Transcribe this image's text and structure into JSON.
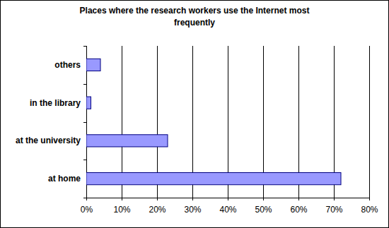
{
  "chart_data": {
    "type": "bar",
    "title": "Places where the research workers use the Internet most frequently",
    "orientation": "horizontal",
    "categories": [
      "others",
      "in the library",
      "at the university",
      "at home"
    ],
    "values": [
      4,
      1.3,
      23,
      72
    ],
    "color": "#9999ff",
    "xlim": [
      0,
      80
    ],
    "xticks": [
      {
        "value": 0,
        "label": "0%"
      },
      {
        "value": 10,
        "label": "10%"
      },
      {
        "value": 20,
        "label": "20%"
      },
      {
        "value": 30,
        "label": "30%"
      },
      {
        "value": 40,
        "label": "40%"
      },
      {
        "value": 50,
        "label": "50%"
      },
      {
        "value": 60,
        "label": "60%"
      },
      {
        "value": 70,
        "label": "70%"
      },
      {
        "value": 80,
        "label": "80%"
      }
    ],
    "grid": true
  }
}
